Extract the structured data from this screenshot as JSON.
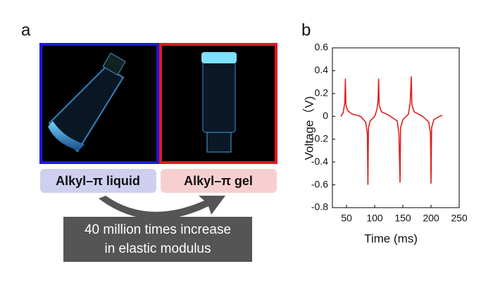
{
  "panel_a": {
    "label": "a",
    "liquid_label": "Alkyl–π liquid",
    "gel_label": "Alkyl–π gel",
    "note_lines": [
      "40 million times increase",
      "in elastic modulus"
    ]
  },
  "chart_data": {
    "type": "line",
    "panel_label": "b",
    "xlabel": "Time (ms)",
    "ylabel": "Voltage（V)",
    "x": [
      40,
      44,
      47,
      48,
      49,
      52,
      60,
      75,
      84,
      87,
      88,
      89,
      92,
      100,
      104,
      106,
      107,
      108,
      112,
      125,
      140,
      143,
      145,
      146,
      150,
      160,
      163,
      165,
      166,
      170,
      185,
      196,
      199,
      200,
      201,
      205,
      215,
      220
    ],
    "series": [
      {
        "color": "#e02020",
        "values": [
          0,
          0.03,
          0.12,
          0.33,
          0.1,
          0.05,
          0.02,
          0,
          -0.05,
          -0.15,
          -0.6,
          -0.1,
          -0.04,
          0,
          0.06,
          0.14,
          0.33,
          0.1,
          0.04,
          0.01,
          -0.04,
          -0.15,
          -0.58,
          -0.1,
          -0.03,
          0.02,
          0.12,
          0.35,
          0.1,
          0.04,
          0,
          -0.05,
          -0.15,
          -0.59,
          -0.1,
          -0.03,
          0,
          0.01
        ]
      }
    ],
    "xlim": [
      25,
      250
    ],
    "xticks": [
      50,
      100,
      150,
      200,
      250
    ],
    "ylim": [
      -0.8,
      0.6
    ],
    "yticks": [
      -0.8,
      -0.6,
      -0.4,
      -0.2,
      0,
      0.2,
      0.4,
      0.6
    ]
  }
}
